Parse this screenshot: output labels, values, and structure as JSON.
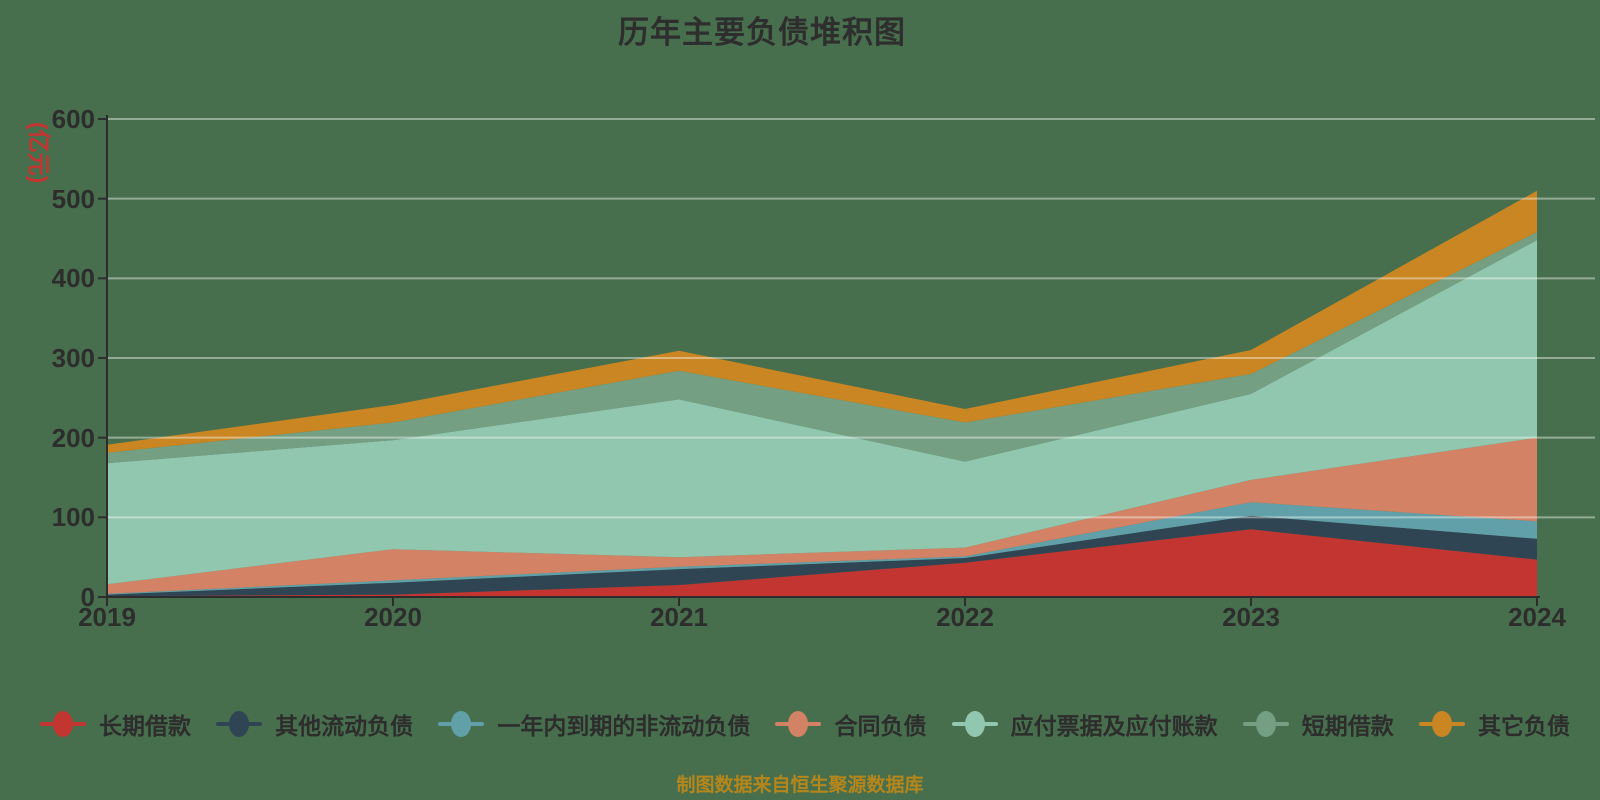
{
  "title": "历年主要负债堆积图",
  "footer_note": "制图数据来自恒生聚源数据库",
  "y_axis": {
    "unit_label": "(亿元)",
    "tick_labels": [
      "0",
      "100",
      "200",
      "300",
      "400",
      "500",
      "600"
    ],
    "tick_values": [
      0,
      100,
      200,
      300,
      400,
      500,
      600
    ]
  },
  "x_axis": {
    "tick_labels": [
      "2019",
      "2020",
      "2021",
      "2022",
      "2023",
      "2024"
    ]
  },
  "colors": {
    "background": "#486f4d",
    "axis": "#2d2d2d",
    "gridline": "rgba(255,255,255,0.42)",
    "title_text": "#2e2e2e",
    "axis_label_text": "#2d2d2d",
    "unit_label_text": "#c23531",
    "legend_text": "#2d2d2d",
    "footer_text": "#b5861b"
  },
  "chart_data": {
    "type": "area",
    "stacked": true,
    "title": "历年主要负债堆积图",
    "ylabel": "(亿元)",
    "ylim": [
      0,
      600
    ],
    "grid": true,
    "legend_position": "bottom",
    "categories": [
      "2019",
      "2020",
      "2021",
      "2022",
      "2023",
      "2024"
    ],
    "series": [
      {
        "name": "长期借款",
        "color": "#c23531",
        "values": [
          1,
          3,
          15,
          43,
          85,
          47
        ]
      },
      {
        "name": "其他流动负债",
        "color": "#2f4554",
        "values": [
          2,
          15,
          20,
          6,
          17,
          26
        ]
      },
      {
        "name": "一年内到期的非流动负债",
        "color": "#61a0a8",
        "values": [
          1,
          3,
          3,
          2,
          17,
          22
        ]
      },
      {
        "name": "合同负债",
        "color": "#d48265",
        "values": [
          12,
          39,
          12,
          11,
          28,
          105
        ]
      },
      {
        "name": "应付票据及应付账款",
        "color": "#91c7ae",
        "values": [
          152,
          137,
          198,
          108,
          108,
          248
        ]
      },
      {
        "name": "短期借款",
        "color": "#749f83",
        "values": [
          13,
          22,
          36,
          49,
          25,
          10
        ]
      },
      {
        "name": "其它负债",
        "color": "#ca8622",
        "values": [
          10,
          22,
          25,
          17,
          30,
          52
        ]
      }
    ]
  }
}
